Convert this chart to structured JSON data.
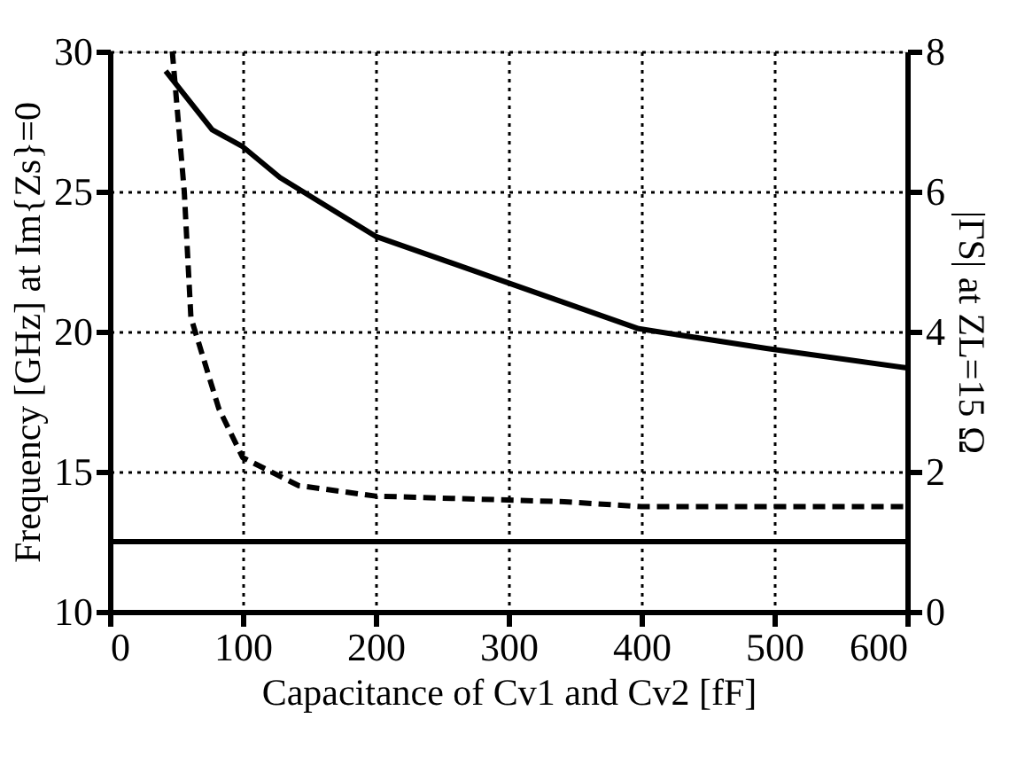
{
  "chart_data": {
    "type": "line",
    "xlabel": "Capacitance of Cv1 and Cv2 [fF]",
    "ylabel": "Frequency [GHz] at Im{Zs}=0",
    "y2label": "|ΓS|  at ZL=15 Ω",
    "xlim": [
      0,
      600
    ],
    "xticks": [
      0,
      100,
      200,
      300,
      400,
      500,
      600
    ],
    "ylim": [
      10,
      30
    ],
    "yticks": [
      10,
      15,
      20,
      25,
      30
    ],
    "y2lim": [
      0,
      8
    ],
    "y2ticks": [
      0,
      2,
      4,
      6,
      8
    ],
    "grid": true,
    "series": [
      {
        "color": "#000000",
        "line_style": "solid",
        "x": [
          42,
          77,
          100,
          128,
          200,
          296,
          398,
          494,
          600
        ],
        "values": [
          29.3,
          27.2,
          26.6,
          25.5,
          23.4,
          21.8,
          20.1,
          19.4,
          18.7
        ]
      },
      {
        "color": "#000000",
        "line_style": "dashed",
        "axis": "y2",
        "x": [
          47,
          56,
          61,
          82,
          100,
          142,
          200,
          342,
          400,
          500,
          600
        ],
        "values": [
          8.0,
          6.0,
          4.2,
          2.9,
          2.2,
          1.8,
          1.65,
          1.57,
          1.5,
          1.5,
          1.5
        ]
      }
    ],
    "ref_lines": [
      {
        "axis": "y",
        "value": 12.5,
        "color": "#000000"
      }
    ]
  }
}
